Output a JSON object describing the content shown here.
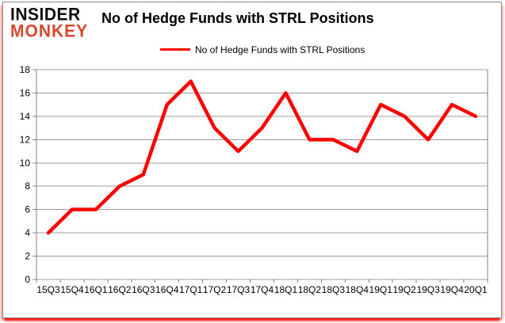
{
  "logo": {
    "line1": "INSIDER",
    "line2": "MONKEY"
  },
  "header": {
    "title": "No of Hedge Funds with STRL Positions"
  },
  "legend": {
    "label": "No of Hedge Funds with STRL Positions"
  },
  "colors": {
    "line": "#ff0000",
    "logo_accent": "#d6492f",
    "grid": "#9c9c9c",
    "axis": "#808080",
    "text": "#000000"
  },
  "chart_data": {
    "type": "line",
    "title": "No of Hedge Funds with STRL Positions",
    "categories": [
      "15Q3",
      "15Q4",
      "16Q1",
      "16Q2",
      "16Q3",
      "16Q4",
      "17Q1",
      "17Q2",
      "17Q3",
      "17Q4",
      "18Q1",
      "18Q2",
      "18Q3",
      "18Q4",
      "19Q1",
      "19Q2",
      "19Q3",
      "19Q4",
      "20Q1"
    ],
    "series": [
      {
        "name": "No of Hedge Funds with STRL Positions",
        "values": [
          4,
          6,
          6,
          8,
          9,
          15,
          17,
          13,
          11,
          13,
          16,
          12,
          12,
          11,
          15,
          14,
          12,
          15,
          14
        ]
      }
    ],
    "xlabel": "",
    "ylabel": "",
    "ylim": [
      0,
      18
    ],
    "ytick_step": 2,
    "grid": true,
    "legend_position": "top"
  }
}
